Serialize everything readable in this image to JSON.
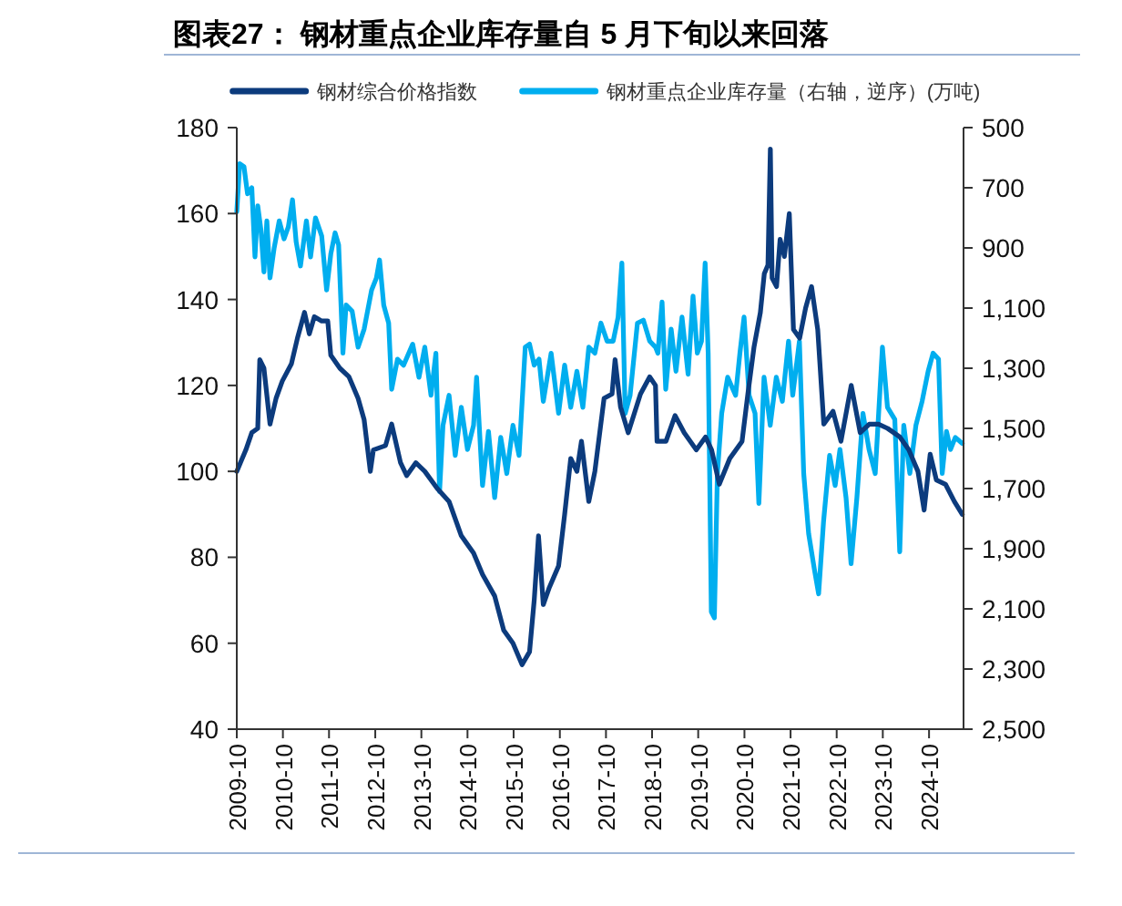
{
  "chart_data": {
    "type": "line",
    "title": "图表27：  钢材重点企业库存量自 5 月下旬以来回落",
    "legend": "top",
    "xlim": [
      "2009-10-01",
      "2025-07-01"
    ],
    "xticks": [
      "2009-10",
      "2010-10",
      "2011-10",
      "2012-10",
      "2013-10",
      "2014-10",
      "2015-10",
      "2016-10",
      "2017-10",
      "2018-10",
      "2019-10",
      "2020-10",
      "2021-10",
      "2022-10",
      "2023-10",
      "2024-10"
    ],
    "ylim": [
      40,
      180
    ],
    "yticks": [
      40,
      60,
      80,
      100,
      120,
      140,
      160,
      180
    ],
    "y2lim": [
      2500,
      500
    ],
    "y2ticks": [
      500,
      700,
      900,
      {
        "value": 1100,
        "label": "1,100"
      },
      {
        "value": 1300,
        "label": "1,300"
      },
      {
        "value": 1500,
        "label": "1,500"
      },
      {
        "value": 1700,
        "label": "1,700"
      },
      {
        "value": 1900,
        "label": "1,900"
      },
      {
        "value": 2100,
        "label": "2,100"
      },
      {
        "value": 2300,
        "label": "2,300"
      },
      {
        "value": 2500,
        "label": "2,500"
      }
    ],
    "series": [
      {
        "name": "钢材综合价格指数",
        "color": "#0c3b7d",
        "x": [
          "2009-10-01",
          "2009-12-12",
          "2010-01-28",
          "2010-03-16",
          "2010-04-01",
          "2010-05-04",
          "2010-06-21",
          "2010-08-08",
          "2010-09-26",
          "2010-12-07",
          "2011-01-24",
          "2011-03-21",
          "2011-04-28",
          "2011-06-07",
          "2011-08-04",
          "2011-09-21",
          "2011-10-15",
          "2011-12-26",
          "2012-03-07",
          "2012-05-18",
          "2012-07-05",
          "2012-08-23",
          "2012-09-16",
          "2012-12-21",
          "2013-02-08",
          "2013-04-19",
          "2013-06-07",
          "2013-08-18",
          "2013-10-28",
          "2014-02-04",
          "2014-05-08",
          "2014-08-13",
          "2014-11-18",
          "2015-01-28",
          "2015-05-04",
          "2015-07-15",
          "2015-09-26",
          "2015-12-07",
          "2016-02-04",
          "2016-03-12",
          "2016-04-15",
          "2016-05-23",
          "2016-07-10",
          "2016-09-21",
          "2016-11-08",
          "2016-12-26",
          "2017-02-13",
          "2017-03-21",
          "2017-05-18",
          "2017-07-05",
          "2017-09-16",
          "2017-11-18",
          "2017-12-12",
          "2018-01-24",
          "2018-03-26",
          "2018-07-01",
          "2018-09-12",
          "2018-10-28",
          "2018-11-09",
          "2019-01-19",
          "2019-04-01",
          "2019-06-12",
          "2019-09-16",
          "2019-11-28",
          "2020-01-15",
          "2020-03-16",
          "2020-06-07",
          "2020-09-12",
          "2020-10-28",
          "2020-12-16",
          "2021-02-04",
          "2021-03-07",
          "2021-04-05",
          "2021-04-24",
          "2021-05-08",
          "2021-06-12",
          "2021-07-10",
          "2021-08-13",
          "2021-09-21",
          "2021-10-24",
          "2021-12-12",
          "2022-01-28",
          "2022-03-16",
          "2022-05-04",
          "2022-06-21",
          "2022-09-02",
          "2022-11-04",
          "2023-01-24",
          "2023-04-05",
          "2023-06-16",
          "2023-08-28",
          "2023-11-08",
          "2024-02-13",
          "2024-04-24",
          "2024-07-05",
          "2024-08-23",
          "2024-10-10",
          "2024-11-28",
          "2025-02-08",
          "2025-04-19",
          "2025-06-21"
        ],
        "values": [
          100,
          105,
          109,
          110,
          126,
          124,
          111,
          117,
          121,
          125,
          131,
          137,
          132,
          136,
          135,
          135,
          127,
          124,
          122,
          117,
          112,
          100,
          105,
          106,
          111,
          102,
          99,
          102,
          100,
          96,
          93,
          85,
          81,
          76,
          71,
          63,
          60,
          55,
          58,
          70,
          85,
          69,
          73,
          78,
          90,
          103,
          100,
          107,
          93,
          100,
          117,
          118,
          126,
          115,
          109,
          118,
          122,
          120,
          107,
          107,
          113,
          109,
          105,
          108,
          105,
          97,
          103,
          107,
          118,
          129,
          137,
          146,
          148,
          175,
          145,
          143,
          154,
          150,
          160,
          133,
          131,
          138,
          143,
          133,
          111,
          114,
          107,
          120,
          109,
          111,
          111,
          110,
          108,
          105,
          100,
          91,
          104,
          98,
          97,
          93,
          90
        ]
      },
      {
        "name": "钢材重点企业库存量（右轴，逆序）(万吨)",
        "color": "#00aeef",
        "axis": "y2",
        "x": [
          "2009-10-01",
          "2009-10-24",
          "2009-11-27",
          "2009-12-25",
          "2010-01-28",
          "2010-02-22",
          "2010-03-16",
          "2010-04-10",
          "2010-05-04",
          "2010-05-27",
          "2010-06-21",
          "2010-07-24",
          "2010-09-02",
          "2010-10-10",
          "2010-11-13",
          "2010-12-16",
          "2011-01-14",
          "2011-02-17",
          "2011-04-05",
          "2011-05-08",
          "2011-06-16",
          "2011-08-04",
          "2011-09-12",
          "2011-10-15",
          "2011-11-18",
          "2011-12-16",
          "2012-01-19",
          "2012-02-13",
          "2012-04-01",
          "2012-05-18",
          "2012-07-05",
          "2012-09-02",
          "2012-10-10",
          "2012-11-04",
          "2012-12-07",
          "2013-01-15",
          "2013-02-08",
          "2013-03-26",
          "2013-05-13",
          "2013-07-24",
          "2013-09-12",
          "2013-10-28",
          "2013-12-16",
          "2014-01-24",
          "2014-02-22",
          "2014-03-21",
          "2014-05-08",
          "2014-06-26",
          "2014-08-13",
          "2014-10-01",
          "2014-11-18",
          "2014-12-12",
          "2015-01-28",
          "2015-03-16",
          "2015-05-04",
          "2015-06-21",
          "2015-08-08",
          "2015-09-26",
          "2015-11-13",
          "2016-01-01",
          "2016-02-04",
          "2016-03-12",
          "2016-04-19",
          "2016-05-23",
          "2016-07-24",
          "2016-09-21",
          "2016-11-08",
          "2016-12-26",
          "2017-02-13",
          "2017-04-01",
          "2017-05-18",
          "2017-07-05",
          "2017-08-22",
          "2017-10-10",
          "2017-11-27",
          "2018-01-05",
          "2018-02-04",
          "2018-03-02",
          "2018-04-10",
          "2018-06-07",
          "2018-07-24",
          "2018-09-12",
          "2018-10-28",
          "2018-11-16",
          "2018-12-19",
          "2019-01-17",
          "2019-03-01",
          "2019-04-08",
          "2019-05-26",
          "2019-07-13",
          "2019-08-21",
          "2019-09-24",
          "2019-10-27",
          "2019-11-25",
          "2019-12-19",
          "2020-01-13",
          "2020-02-06",
          "2020-03-01",
          "2020-04-04",
          "2020-05-21",
          "2020-07-23",
          "2020-08-26",
          "2020-09-28",
          "2020-11-07",
          "2020-12-24",
          "2021-01-23",
          "2021-03-05",
          "2021-04-23",
          "2021-06-10",
          "2021-07-28",
          "2021-09-15",
          "2021-10-18",
          "2021-12-10",
          "2022-01-13",
          "2022-02-21",
          "2022-04-08",
          "2022-05-11",
          "2022-06-19",
          "2022-08-06",
          "2022-09-19",
          "2022-10-27",
          "2022-12-14",
          "2023-01-23",
          "2023-03-10",
          "2023-04-27",
          "2023-06-14",
          "2023-08-02",
          "2023-09-28",
          "2023-11-07",
          "2024-01-04",
          "2024-02-12",
          "2024-03-15",
          "2024-05-02",
          "2024-06-19",
          "2024-08-07",
          "2024-09-24",
          "2024-11-02",
          "2024-12-15",
          "2025-01-13",
          "2025-02-16",
          "2025-03-20",
          "2025-04-27",
          "2025-06-21"
        ],
        "values": [
          780,
          620,
          630,
          720,
          700,
          930,
          760,
          840,
          980,
          810,
          1000,
          900,
          810,
          870,
          830,
          740,
          880,
          960,
          810,
          930,
          800,
          860,
          1040,
          920,
          850,
          890,
          1250,
          1090,
          1110,
          1230,
          1170,
          1040,
          1000,
          940,
          1090,
          1150,
          1370,
          1270,
          1290,
          1220,
          1330,
          1230,
          1390,
          1250,
          1710,
          1490,
          1390,
          1590,
          1430,
          1570,
          1490,
          1330,
          1690,
          1510,
          1730,
          1530,
          1650,
          1490,
          1590,
          1230,
          1220,
          1290,
          1270,
          1410,
          1250,
          1450,
          1290,
          1430,
          1310,
          1430,
          1230,
          1250,
          1150,
          1210,
          1210,
          1130,
          950,
          1450,
          1390,
          1150,
          1140,
          1210,
          1230,
          1250,
          1080,
          1370,
          1170,
          1310,
          1130,
          1320,
          1060,
          1250,
          1210,
          950,
          1250,
          2110,
          2130,
          1650,
          1450,
          1330,
          1390,
          1250,
          1130,
          1390,
          1450,
          1750,
          1330,
          1490,
          1330,
          1410,
          1210,
          1390,
          1210,
          1650,
          1850,
          1970,
          2050,
          1810,
          1590,
          1690,
          1570,
          1730,
          1950,
          1730,
          1450,
          1570,
          1650,
          1230,
          1430,
          1470,
          1910,
          1490,
          1650,
          1490,
          1410,
          1310,
          1250,
          1270,
          1650,
          1510,
          1570,
          1530,
          1550
        ]
      }
    ]
  }
}
